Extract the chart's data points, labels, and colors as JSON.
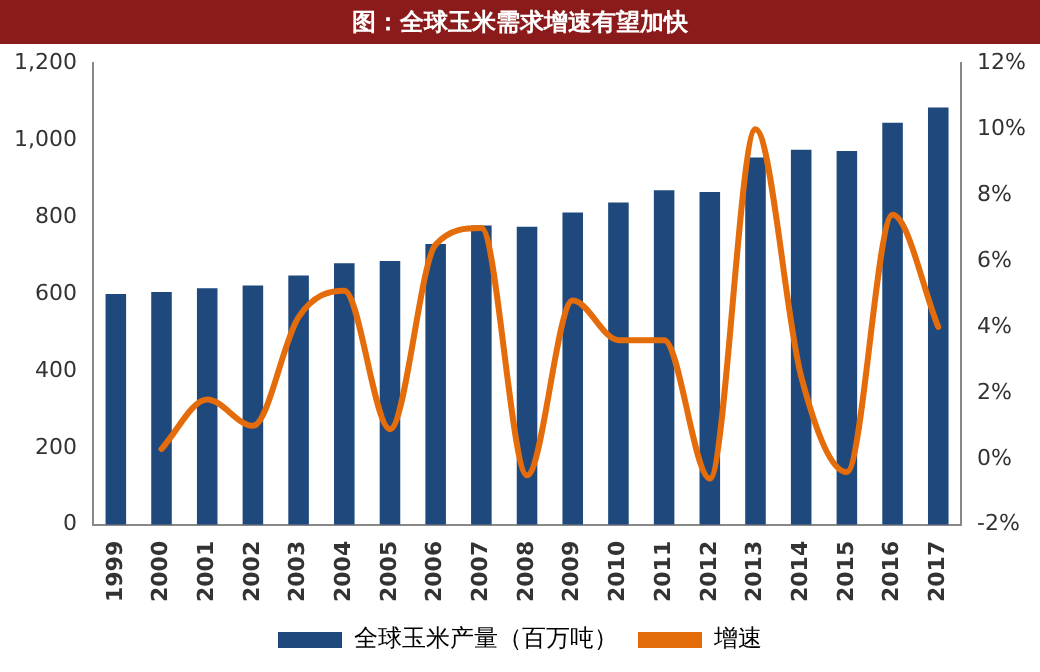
{
  "chart_data": {
    "type": "bar",
    "title": "图：全球玉米需求增速有望加快",
    "categories": [
      "1999",
      "2000",
      "2001",
      "2002",
      "2003",
      "2004",
      "2005",
      "2006",
      "2007",
      "2008",
      "2009",
      "2010",
      "2011",
      "2012",
      "2013",
      "2014",
      "2015",
      "2016",
      "2017"
    ],
    "series": [
      {
        "name": "全球玉米产量（百万吨）",
        "color": "#1f497d",
        "values": [
          600,
          605,
          615,
          622,
          648,
          680,
          686,
          730,
          778,
          775,
          812,
          838,
          870,
          865,
          955,
          975,
          972,
          1045,
          1085
        ]
      },
      {
        "name": "增速",
        "type": "line",
        "axis": "y2",
        "color": "#e46c0a",
        "values": [
          null,
          0.3,
          1.8,
          1.0,
          4.3,
          5.1,
          0.9,
          6.5,
          7.0,
          -0.5,
          4.8,
          3.6,
          3.6,
          -0.6,
          10.0,
          2.5,
          -0.4,
          7.4,
          4.0
        ]
      }
    ],
    "ylim": [
      0,
      1200
    ],
    "yticks": [
      0,
      {
        "value": 200,
        "label": "200"
      },
      {
        "value": 400,
        "label": "400"
      },
      {
        "value": 600,
        "label": "600"
      },
      {
        "value": 800,
        "label": "800"
      },
      {
        "value": 1000,
        "label": "1,000"
      },
      {
        "value": 1200,
        "label": "1,200"
      }
    ],
    "y2lim": [
      -2,
      12
    ],
    "y2ticks": [
      {
        "value": -2,
        "label": "-2%"
      },
      {
        "value": 0,
        "label": "0%"
      },
      {
        "value": 2,
        "label": "2%"
      },
      {
        "value": 4,
        "label": "4%"
      },
      {
        "value": 6,
        "label": "6%"
      },
      {
        "value": 8,
        "label": "8%"
      },
      {
        "value": 10,
        "label": "10%"
      },
      {
        "value": 12,
        "label": "12%"
      }
    ],
    "grid": false,
    "legend": "bottom",
    "marker": "none",
    "line_style": "solid"
  }
}
